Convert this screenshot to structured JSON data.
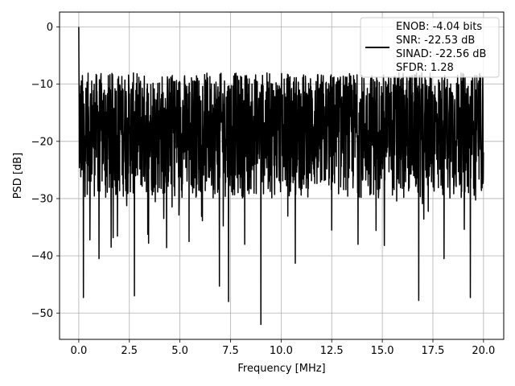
{
  "chart_data": {
    "type": "line",
    "title": "",
    "xlabel": "Frequency [MHz]",
    "ylabel": "PSD [dB]",
    "xlim": [
      -0.95,
      21.0
    ],
    "ylim": [
      -54.6,
      2.6
    ],
    "x_ticks": [
      0.0,
      2.5,
      5.0,
      7.5,
      10.0,
      12.5,
      15.0,
      17.5,
      20.0
    ],
    "x_tick_labels": [
      "0.0",
      "2.5",
      "5.0",
      "7.5",
      "10.0",
      "12.5",
      "15.0",
      "17.5",
      "20.0"
    ],
    "y_ticks": [
      0,
      -10,
      -20,
      -30,
      -40,
      -50
    ],
    "y_tick_labels": [
      "0",
      "−10",
      "−20",
      "−30",
      "−40",
      "−50"
    ],
    "grid": true,
    "legend_position": "top-right",
    "series": [
      {
        "name": "",
        "color": "#000000",
        "x_start": 0.0,
        "x_end": 20.0,
        "peak": {
          "x": 0.0,
          "y": 0.0
        },
        "noise_floor_range": [
          -30,
          -8
        ],
        "deep_nulls": [
          {
            "x": 0.23,
            "y": -47.3
          },
          {
            "x": 0.55,
            "y": -37.2
          },
          {
            "x": 1.0,
            "y": -40.5
          },
          {
            "x": 1.6,
            "y": -38.5
          },
          {
            "x": 2.75,
            "y": -47.0
          },
          {
            "x": 3.45,
            "y": -37.8
          },
          {
            "x": 5.45,
            "y": -37.5
          },
          {
            "x": 6.95,
            "y": -45.3
          },
          {
            "x": 7.4,
            "y": -48.0
          },
          {
            "x": 8.2,
            "y": -38.0
          },
          {
            "x": 9.0,
            "y": -52.0
          },
          {
            "x": 10.7,
            "y": -41.3
          },
          {
            "x": 12.5,
            "y": -35.5
          },
          {
            "x": 13.8,
            "y": -38.0
          },
          {
            "x": 15.1,
            "y": -38.2
          },
          {
            "x": 16.8,
            "y": -47.8
          },
          {
            "x": 18.05,
            "y": -40.5
          },
          {
            "x": 19.35,
            "y": -47.3
          }
        ]
      }
    ],
    "legend": {
      "lines": [
        "ENOB: -4.04 bits",
        "SNR: -22.53 dB",
        "SINAD: -22.56 dB",
        "SFDR: 1.28"
      ]
    }
  }
}
